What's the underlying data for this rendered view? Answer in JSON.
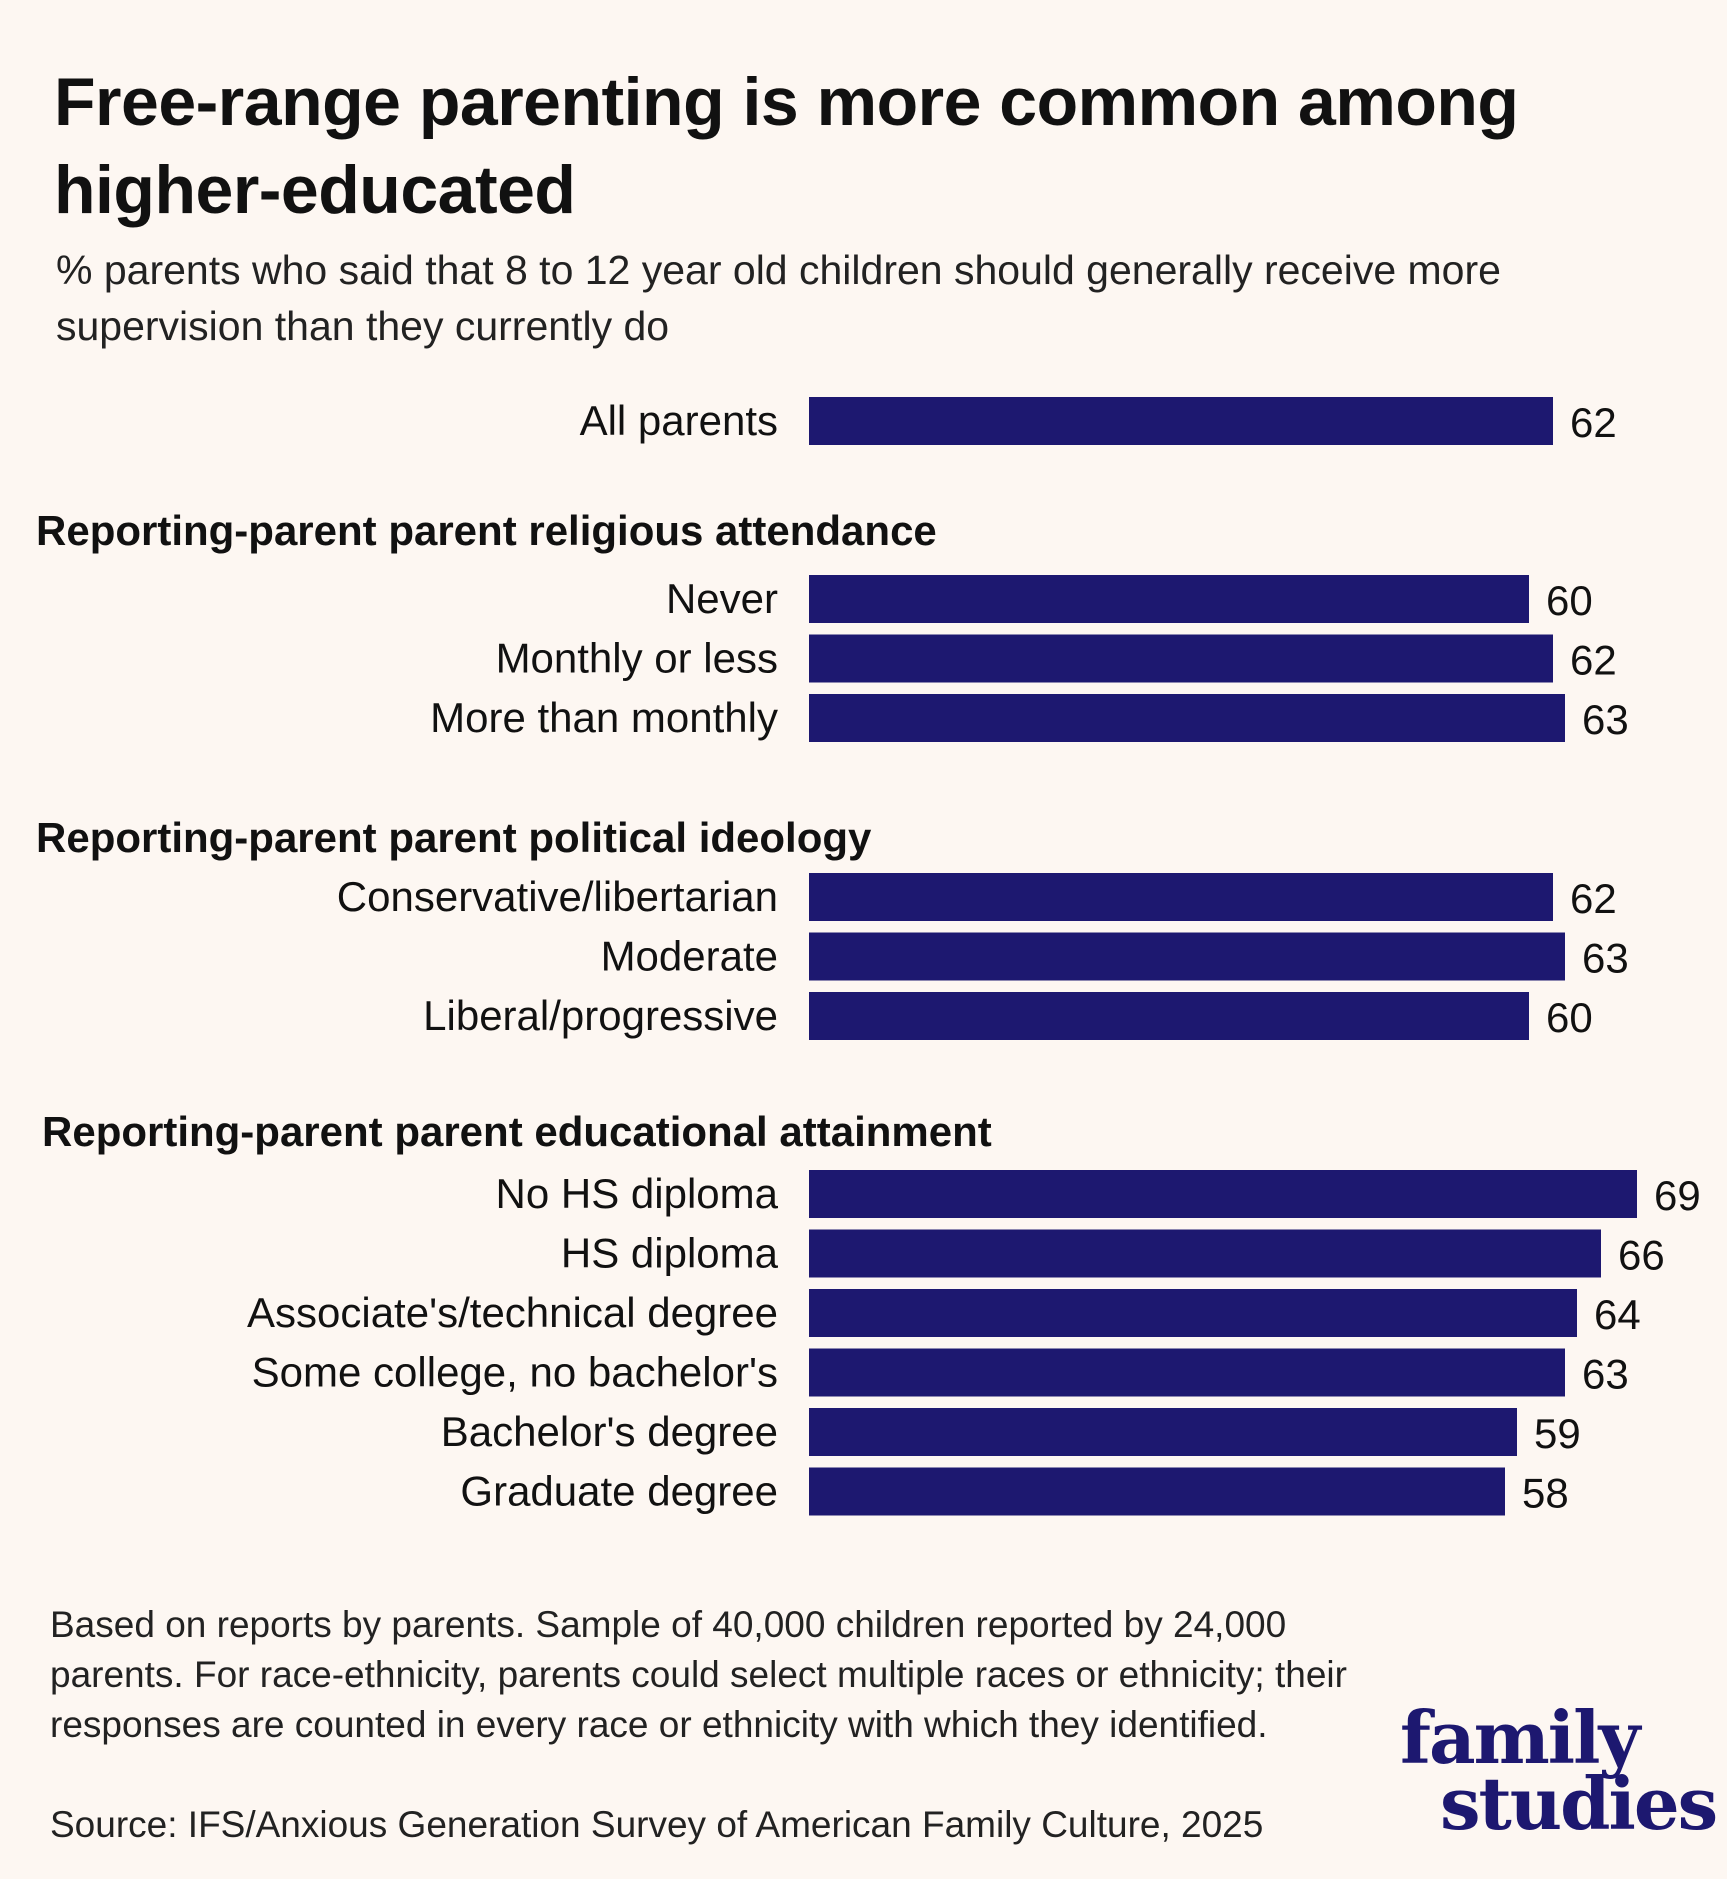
{
  "title": "Free-range parenting is more common among higher-educated",
  "subtitle": "% parents who said that 8 to 12 year old children should generally receive more supervision than they currently do",
  "footnote": "Based on reports by parents. Sample of 40,000 children reported by 24,000 parents. For race-ethnicity, parents could select multiple races or ethnicity; their responses are counted in every race or ethnicity with which they identified.",
  "source": "Source: IFS/Anxious Generation Survey of American Family Culture, 2025",
  "logo": {
    "line1": "family",
    "line2": "studies"
  },
  "colors": {
    "bar": "#1d1870",
    "background": "#fdf7f2",
    "logo": "#1d1870"
  },
  "chart_data": {
    "type": "bar",
    "orientation": "horizontal",
    "groups": [
      {
        "label": "",
        "categories": [
          "All parents"
        ],
        "values": [
          62
        ]
      },
      {
        "label": "Reporting-parent parent religious attendance",
        "categories": [
          "Never",
          "Monthly or less",
          "More than monthly"
        ],
        "values": [
          60,
          62,
          63
        ]
      },
      {
        "label": "Reporting-parent parent political ideology",
        "categories": [
          "Conservative/libertarian",
          "Moderate",
          "Liberal/progressive"
        ],
        "values": [
          62,
          63,
          60
        ]
      },
      {
        "label": "Reporting-parent parent educational attainment",
        "categories": [
          "No HS diploma",
          "HS diploma",
          "Associate's/technical degree",
          "Some college, no bachelor's",
          "Bachelor's degree",
          "Graduate degree"
        ],
        "values": [
          69,
          66,
          64,
          63,
          59,
          58
        ]
      }
    ],
    "grid": false,
    "axes_visible": false
  }
}
